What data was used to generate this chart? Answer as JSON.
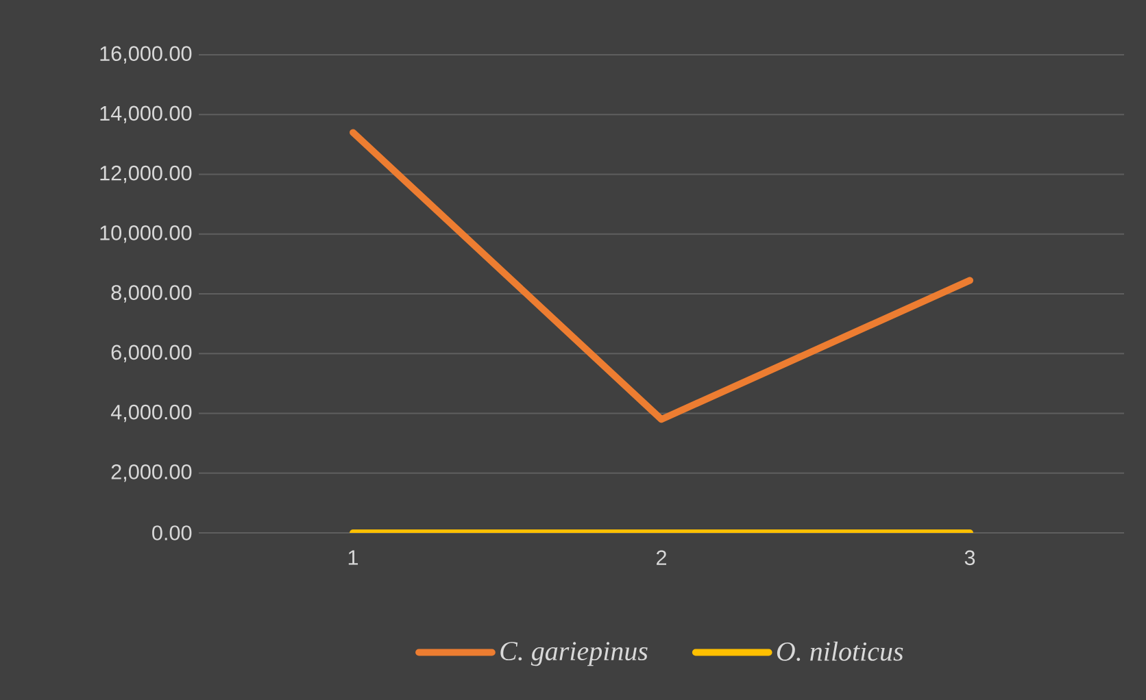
{
  "chart_data": {
    "type": "line",
    "categories": [
      "1",
      "2",
      "3"
    ],
    "series": [
      {
        "name": "*C. gariepinus*",
        "color": "#ed7d31",
        "values": [
          13400,
          3800,
          8450
        ]
      },
      {
        "name": "*O. niloticus*",
        "color": "#ffc000",
        "values": [
          0,
          0,
          0
        ]
      }
    ],
    "ylim": [
      0,
      16000
    ],
    "yticks": [
      {
        "value": 0,
        "label": "0.00"
      },
      {
        "value": 2000,
        "label": "2,000.00"
      },
      {
        "value": 4000,
        "label": "4,000.00"
      },
      {
        "value": 6000,
        "label": "6,000.00"
      },
      {
        "value": 8000,
        "label": "8,000.00"
      },
      {
        "value": 10000,
        "label": "10,000.00"
      },
      {
        "value": 12000,
        "label": "12,000.00"
      },
      {
        "value": 14000,
        "label": "14,000.00"
      },
      {
        "value": 16000,
        "label": "16,000.00"
      }
    ],
    "grid": "y",
    "legend": "bottom",
    "marker": "none",
    "line_style": "solid"
  }
}
